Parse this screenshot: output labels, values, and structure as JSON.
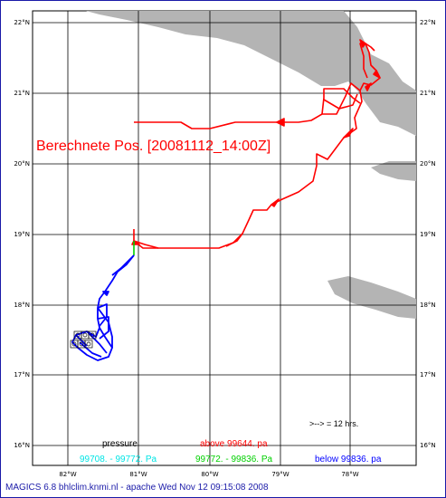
{
  "map": {
    "title": "Berechnete Pos.  [20081112_14:00Z]",
    "lat_labels": [
      "22°N",
      "21°N",
      "20°N",
      "19°N",
      "18°N",
      "17°N",
      "16°N"
    ],
    "lon_labels": [
      "82°W",
      "81°W",
      "80°W",
      "79°W",
      "78°W"
    ],
    "scale_note": ">--> = 12 hrs."
  },
  "legend": {
    "heading": "pressure",
    "above": "above 99644.  pa",
    "range1": "99708. - 99772.  Pa",
    "range2": "99772. - 99836.  Pa",
    "below": "below 99836.  pa",
    "colors": {
      "above": "#ff0000",
      "range1": "#00e5e5",
      "range2": "#00d000",
      "below": "#0000ff"
    }
  },
  "footer": {
    "text": "MAGICS 6.8 bhlclim.knmi.nl - apache Wed Nov 12 09:15:08 2008"
  }
}
